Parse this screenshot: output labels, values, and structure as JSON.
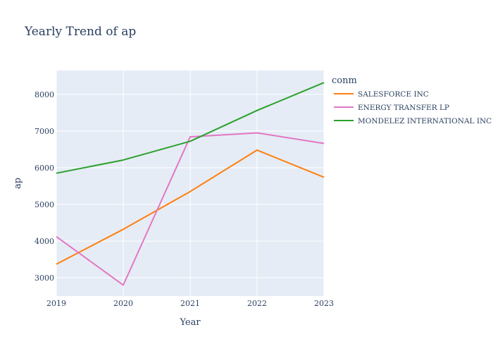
{
  "chart_data": {
    "type": "line",
    "title": "Yearly Trend of ap",
    "xlabel": "Year",
    "ylabel": "ap",
    "x": [
      2019,
      2020,
      2021,
      2022,
      2023
    ],
    "xlim": [
      2019,
      2023
    ],
    "ylim": [
      2500,
      8650
    ],
    "yticks": [
      3000,
      4000,
      5000,
      6000,
      7000,
      8000
    ],
    "grid": true,
    "legend": {
      "title": "conm",
      "placement": "right"
    },
    "series": [
      {
        "name": "SALESFORCE INC",
        "color": "#ff7f0e",
        "values": [
          3370,
          4320,
          5350,
          6480,
          5740
        ]
      },
      {
        "name": "ENERGY TRANSFER LP",
        "color": "#e377c2",
        "values": [
          4120,
          2800,
          6840,
          6950,
          6660
        ]
      },
      {
        "name": "MONDELEZ INTERNATIONAL INC",
        "color": "#2ca02c",
        "values": [
          5850,
          6210,
          6720,
          7560,
          8320
        ]
      }
    ]
  }
}
